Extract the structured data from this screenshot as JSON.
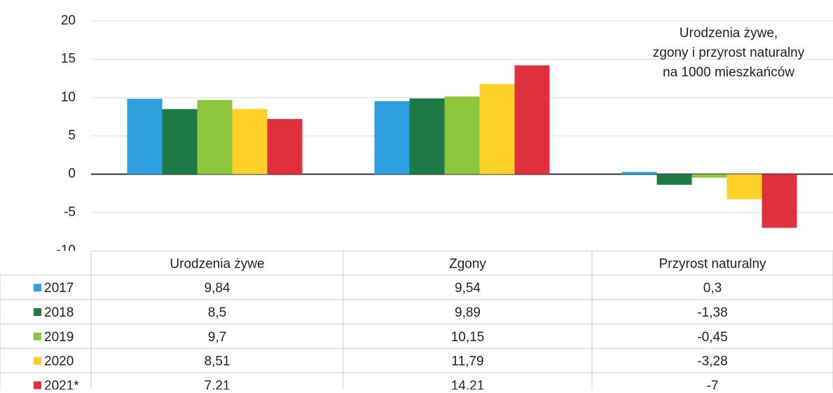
{
  "chart_data": {
    "type": "bar",
    "title": [
      "Urodzenia żywe,",
      "zgony i przyrost naturalny",
      "na 1000 mieszkańców"
    ],
    "categories": [
      "Urodzenia żywe",
      "Zgony",
      "Przyrost naturalny"
    ],
    "series": [
      {
        "name": "2017",
        "color": "#2e9fdf",
        "values": [
          9.84,
          9.54,
          0.3
        ],
        "value_labels": [
          "9,84",
          "9,54",
          "0,3"
        ]
      },
      {
        "name": "2018",
        "color": "#1e7a45",
        "values": [
          8.5,
          9.89,
          -1.38
        ],
        "value_labels": [
          "8,5",
          "9,89",
          "-1,38"
        ]
      },
      {
        "name": "2019",
        "color": "#8cc63f",
        "values": [
          9.7,
          10.15,
          -0.45
        ],
        "value_labels": [
          "9,7",
          "10,15",
          "-0,45"
        ]
      },
      {
        "name": "2020",
        "color": "#fdd128",
        "values": [
          8.51,
          11.79,
          -3.28
        ],
        "value_labels": [
          "8,51",
          "11,79",
          "-3,28"
        ]
      },
      {
        "name": "2021*",
        "color": "#e0303e",
        "values": [
          7.21,
          14.21,
          -7
        ],
        "value_labels": [
          "7,21",
          "14,21",
          "-7"
        ]
      }
    ],
    "ylim": [
      -10,
      20
    ],
    "yticks": [
      -10,
      -5,
      0,
      5,
      10,
      15,
      20
    ],
    "grid": true
  }
}
